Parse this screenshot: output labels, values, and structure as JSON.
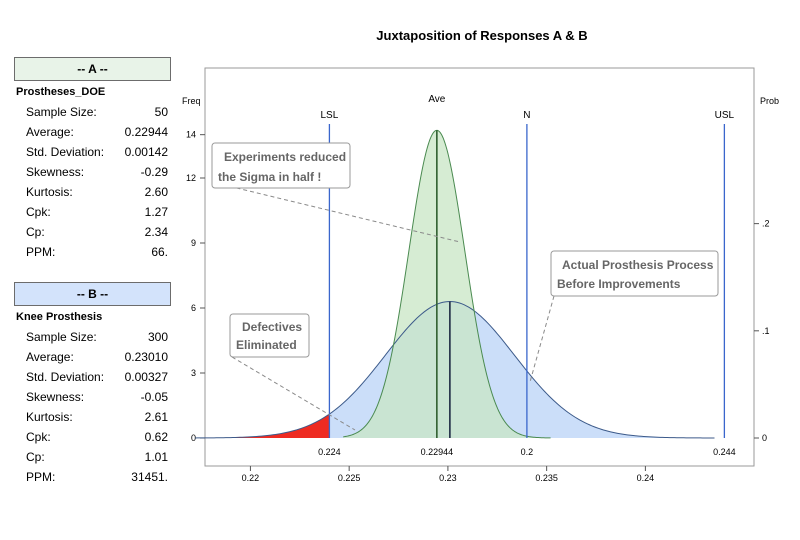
{
  "chart_data": {
    "type": "area",
    "title": "Juxtaposition of Responses A & B",
    "left_axis_label": "Freq",
    "right_axis_label": "Prob",
    "x_ticks": [
      0.22,
      0.225,
      0.23,
      0.235,
      0.24
    ],
    "y_left_ticks": [
      0,
      3,
      6,
      9,
      12,
      14
    ],
    "y_right_ticks": [
      0,
      0.1,
      0.2
    ],
    "y_right_tick_labels": [
      "0",
      ".1",
      ".2"
    ],
    "xlim": [
      0.2177,
      0.2455
    ],
    "ylim": [
      0,
      16.2
    ],
    "spec_lines": [
      {
        "name": "LSL",
        "value": 0.224,
        "value_label": "0.224",
        "color": "#3a66cc"
      },
      {
        "name": "Ave",
        "value": 0.22944,
        "value_label": "0.22944",
        "color": "#2e2e2e"
      },
      {
        "name": "N",
        "value": 0.234,
        "value_label": "0.2",
        "color": "#3a66cc"
      },
      {
        "name": "USL",
        "value": 0.244,
        "value_label": "0.244",
        "color": "#3a66cc"
      }
    ],
    "series": [
      {
        "name": "A",
        "label": "Prostheses_DOE",
        "mean": 0.22944,
        "sd": 0.00142,
        "peak": 14.2,
        "x_from": 0.2247,
        "x_to": 0.2352,
        "fill": "#c8e6c4",
        "stroke": "#4a8a50"
      },
      {
        "name": "B",
        "label": "Knee Prosthesis",
        "mean": 0.2301,
        "sd": 0.00327,
        "peak": 6.3,
        "x_from": 0.2172,
        "x_to": 0.2435,
        "fill": "#c2d8f8",
        "stroke": "#3c5a8a"
      }
    ],
    "defect_region": {
      "series": "B",
      "x_from": 0.2172,
      "x_to": 0.224,
      "color": "#ee2b22"
    },
    "annotations": [
      {
        "id": "experiments",
        "lines": [
          "Experiments reduced",
          "the Sigma in half !"
        ]
      },
      {
        "id": "actual",
        "lines": [
          "Actual Prosthesis Process",
          "Before Improvements"
        ]
      },
      {
        "id": "defectives",
        "lines": [
          "Defectives",
          "Eliminated"
        ]
      }
    ]
  },
  "groups": [
    {
      "header": "-- A --",
      "title": "Prostheses_DOE",
      "header_color": "#e8f3e8",
      "stats": [
        {
          "label": "Sample Size:",
          "value": "50"
        },
        {
          "label": "Average:",
          "value": "0.22944"
        },
        {
          "label": "Std. Deviation:",
          "value": "0.00142"
        },
        {
          "label": "Skewness:",
          "value": "-0.29"
        },
        {
          "label": "Kurtosis:",
          "value": "2.60"
        },
        {
          "label": "Cpk:",
          "value": "1.27"
        },
        {
          "label": "Cp:",
          "value": "2.34"
        },
        {
          "label": "PPM:",
          "value": "66."
        }
      ]
    },
    {
      "header": "-- B --",
      "title": "Knee Prosthesis",
      "header_color": "#d3e3fb",
      "stats": [
        {
          "label": "Sample Size:",
          "value": "300"
        },
        {
          "label": "Average:",
          "value": "0.23010"
        },
        {
          "label": "Std. Deviation:",
          "value": "0.00327"
        },
        {
          "label": "Skewness:",
          "value": "-0.05"
        },
        {
          "label": "Kurtosis:",
          "value": "2.61"
        },
        {
          "label": "Cpk:",
          "value": "0.62"
        },
        {
          "label": "Cp:",
          "value": "1.01"
        },
        {
          "label": "PPM:",
          "value": "31451."
        }
      ]
    }
  ]
}
